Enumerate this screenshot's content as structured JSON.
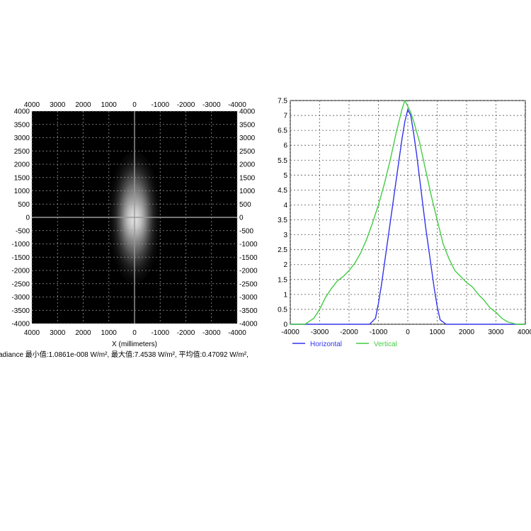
{
  "chart_data": [
    {
      "type": "heatmap",
      "xlabel": "X (millimeters)",
      "ylabel": "",
      "xlim": [
        4000,
        -4000
      ],
      "ylim": [
        -4000,
        4000
      ],
      "x_ticks": [
        "4000",
        "3000",
        "2000",
        "1000",
        "0",
        "-1000",
        "-2000",
        "-3000",
        "-4000"
      ],
      "y_ticks": [
        "4000",
        "3500",
        "3000",
        "2500",
        "2000",
        "1500",
        "1000",
        "500",
        "0",
        "-500",
        "-1000",
        "-1500",
        "-2000",
        "-2500",
        "-3000",
        "-3500",
        "-4000"
      ],
      "grid": true,
      "colormap": "grayscale",
      "caption": "adiance 最小值:1.0861e-008 W/m², 最大值:7.4538 W/m², 平均值:0.47092 W/m²,",
      "peak_center": [
        0,
        0
      ],
      "horizontal_sigma": 450,
      "vertical_sigma": 1400
    },
    {
      "type": "line",
      "xlim": [
        -4000,
        4000
      ],
      "ylim": [
        0,
        7.5
      ],
      "x_ticks": [
        "-4000",
        "-3000",
        "-2000",
        "-1000",
        "0",
        "1000",
        "2000",
        "3000",
        "4000"
      ],
      "y_ticks": [
        "0",
        "0.5",
        "1",
        "1.5",
        "2",
        "2.5",
        "3",
        "3.5",
        "4",
        "4.5",
        "5",
        "5.5",
        "6",
        "6.5",
        "7",
        "7.5"
      ],
      "grid": true,
      "legend_position": "bottom-left",
      "series": [
        {
          "name": "Horizontal",
          "color": "#3333ee",
          "x": [
            -4000,
            -1500,
            -1300,
            -1100,
            -1000,
            -900,
            -800,
            -700,
            -600,
            -500,
            -400,
            -300,
            -200,
            -100,
            0,
            100,
            200,
            300,
            400,
            500,
            600,
            700,
            800,
            900,
            1000,
            1100,
            1300,
            1500,
            4000
          ],
          "y": [
            0,
            0,
            0,
            0.2,
            0.7,
            1.3,
            2.0,
            2.7,
            3.4,
            4.1,
            4.8,
            5.5,
            6.2,
            6.8,
            7.2,
            7.0,
            6.4,
            5.7,
            4.9,
            4.1,
            3.3,
            2.6,
            1.9,
            1.2,
            0.6,
            0.15,
            0,
            0,
            0
          ]
        },
        {
          "name": "Vertical",
          "color": "#44cc44",
          "x": [
            -4000,
            -3500,
            -3200,
            -3000,
            -2800,
            -2600,
            -2400,
            -2200,
            -2000,
            -1800,
            -1600,
            -1400,
            -1200,
            -1000,
            -800,
            -600,
            -400,
            -200,
            -100,
            0,
            100,
            200,
            400,
            600,
            800,
            1000,
            1200,
            1400,
            1600,
            1800,
            2000,
            2200,
            2400,
            2600,
            2800,
            3000,
            3200,
            3400,
            3700,
            4000
          ],
          "y": [
            0,
            0,
            0.2,
            0.5,
            0.9,
            1.2,
            1.45,
            1.6,
            1.8,
            2.05,
            2.4,
            2.85,
            3.4,
            4.0,
            4.7,
            5.5,
            6.4,
            7.2,
            7.5,
            7.3,
            7.1,
            6.8,
            6.1,
            5.2,
            4.3,
            3.5,
            2.7,
            2.2,
            1.8,
            1.6,
            1.4,
            1.25,
            1.0,
            0.8,
            0.55,
            0.4,
            0.2,
            0.08,
            0,
            0
          ]
        }
      ]
    }
  ]
}
